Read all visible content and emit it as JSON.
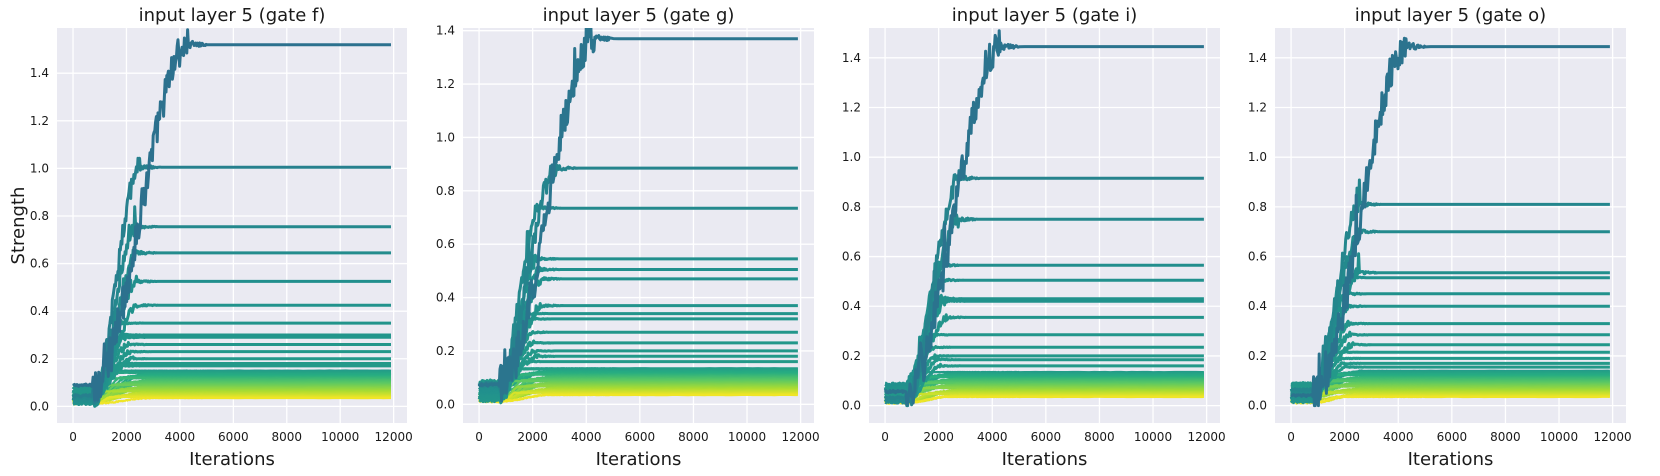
{
  "chart_data": [
    {
      "type": "line",
      "title": "input layer 5 (gate f)",
      "xlabel": "Iterations",
      "ylabel": "Strength",
      "xlim": [
        -600,
        12500
      ],
      "ylim": [
        -0.07,
        1.59
      ],
      "xticks": [
        0,
        2000,
        4000,
        6000,
        8000,
        10000,
        12000
      ],
      "xtick_labels": [
        "0",
        "2000",
        "4000",
        "6000",
        "8000",
        "10000",
        "12000"
      ],
      "yticks": [
        0.0,
        0.2,
        0.4,
        0.6,
        0.8,
        1.0,
        1.2,
        1.4
      ],
      "ytick_labels": [
        "0.0",
        "0.2",
        "0.4",
        "0.6",
        "0.8",
        "1.0",
        "1.2",
        "1.4"
      ],
      "grid": true,
      "background": "#eaeaf2",
      "colormap": "viridis",
      "top_series_final": [
        1.52,
        1.005,
        0.755,
        0.645,
        0.525,
        0.425,
        0.35,
        0.3,
        0.29,
        0.26,
        0.23,
        0.2,
        0.18,
        0.17
      ],
      "bottom_band": [
        0.15,
        0.035
      ],
      "bottom_band_count": 26,
      "x_final": 11900
    },
    {
      "type": "line",
      "title": "input layer 5 (gate g)",
      "xlabel": "Iterations",
      "ylabel": "",
      "xlim": [
        -600,
        12500
      ],
      "ylim": [
        -0.07,
        1.41
      ],
      "xticks": [
        0,
        2000,
        4000,
        6000,
        8000,
        10000,
        12000
      ],
      "xtick_labels": [
        "0",
        "2000",
        "4000",
        "6000",
        "8000",
        "10000",
        "12000"
      ],
      "yticks": [
        0.0,
        0.2,
        0.4,
        0.6,
        0.8,
        1.0,
        1.2,
        1.4
      ],
      "ytick_labels": [
        "0.0",
        "0.2",
        "0.4",
        "0.6",
        "0.8",
        "1.0",
        "1.2",
        "1.4"
      ],
      "grid": true,
      "background": "#eaeaf2",
      "colormap": "viridis",
      "top_series_final": [
        1.37,
        0.885,
        0.735,
        0.545,
        0.505,
        0.47,
        0.37,
        0.34,
        0.32,
        0.27,
        0.23,
        0.2,
        0.18,
        0.16
      ],
      "bottom_band": [
        0.135,
        0.035
      ],
      "bottom_band_count": 26,
      "x_final": 11900
    },
    {
      "type": "line",
      "title": "input layer 5 (gate i)",
      "xlabel": "Iterations",
      "ylabel": "",
      "xlim": [
        -600,
        12500
      ],
      "ylim": [
        -0.07,
        1.52
      ],
      "xticks": [
        0,
        2000,
        4000,
        6000,
        8000,
        10000,
        12000
      ],
      "xtick_labels": [
        "0",
        "2000",
        "4000",
        "6000",
        "8000",
        "10000",
        "12000"
      ],
      "yticks": [
        0.0,
        0.2,
        0.4,
        0.6,
        0.8,
        1.0,
        1.2,
        1.4
      ],
      "ytick_labels": [
        "0.0",
        "0.2",
        "0.4",
        "0.6",
        "0.8",
        "1.0",
        "1.2",
        "1.4"
      ],
      "grid": true,
      "background": "#eaeaf2",
      "colormap": "viridis",
      "top_series_final": [
        1.445,
        0.915,
        0.75,
        0.565,
        0.505,
        0.43,
        0.42,
        0.355,
        0.285,
        0.235,
        0.2,
        0.185,
        0.16
      ],
      "bottom_band": [
        0.135,
        0.035
      ],
      "bottom_band_count": 26,
      "x_final": 11900
    },
    {
      "type": "line",
      "title": "input layer 5 (gate o)",
      "xlabel": "Iterations",
      "ylabel": "",
      "xlim": [
        -600,
        12500
      ],
      "ylim": [
        -0.07,
        1.52
      ],
      "xticks": [
        0,
        2000,
        4000,
        6000,
        8000,
        10000,
        12000
      ],
      "xtick_labels": [
        "0",
        "2000",
        "4000",
        "6000",
        "8000",
        "10000",
        "12000"
      ],
      "yticks": [
        0.0,
        0.2,
        0.4,
        0.6,
        0.8,
        1.0,
        1.2,
        1.4
      ],
      "ytick_labels": [
        "0.0",
        "0.2",
        "0.4",
        "0.6",
        "0.8",
        "1.0",
        "1.2",
        "1.4"
      ],
      "grid": true,
      "background": "#eaeaf2",
      "colormap": "viridis",
      "top_series_final": [
        1.445,
        0.81,
        0.7,
        0.535,
        0.515,
        0.45,
        0.4,
        0.33,
        0.285,
        0.245,
        0.215,
        0.19,
        0.17,
        0.155
      ],
      "bottom_band": [
        0.14,
        0.035
      ],
      "bottom_band_count": 26,
      "x_final": 11900
    }
  ]
}
